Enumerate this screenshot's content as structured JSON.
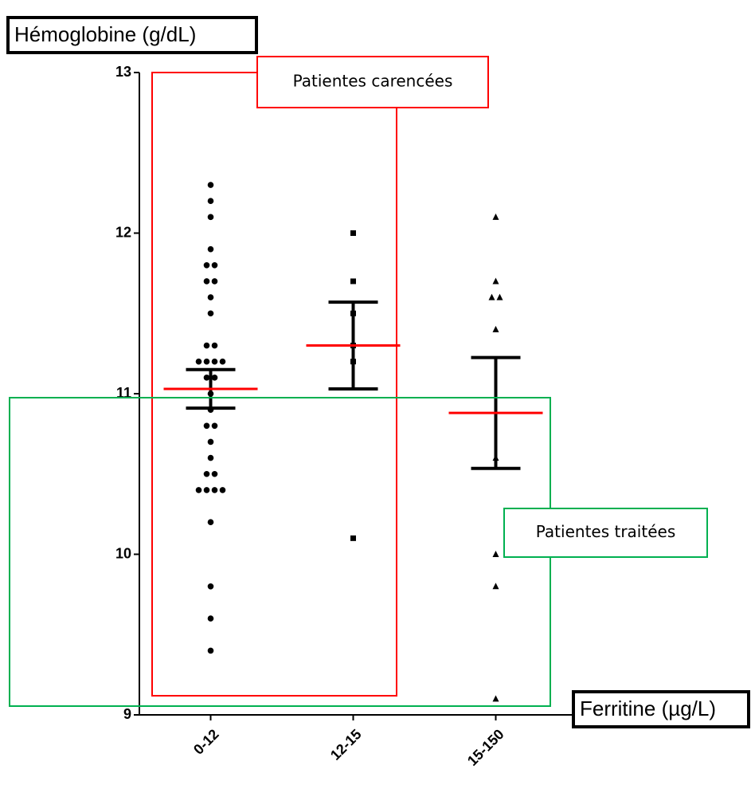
{
  "chart_data": {
    "type": "dot",
    "y_label": "Hémoglobine (g/dL)",
    "x_label": "Ferritine (µg/L)",
    "categories": [
      "0-12",
      "12-15",
      "15-150"
    ],
    "markers": [
      "circle",
      "square",
      "triangle"
    ],
    "color": "#000000",
    "mean_color": "#ff0000",
    "values": [
      [
        12.3,
        12.2,
        12.1,
        11.9,
        11.8,
        11.8,
        11.7,
        11.7,
        11.6,
        11.5,
        11.3,
        11.3,
        11.2,
        11.2,
        11.2,
        11.2,
        11.1,
        11.1,
        11.0,
        10.9,
        10.8,
        10.8,
        10.7,
        10.6,
        10.5,
        10.5,
        10.4,
        10.4,
        10.4,
        10.4,
        10.2,
        9.8,
        9.6,
        9.4
      ],
      [
        12.0,
        11.7,
        11.5,
        11.3,
        11.2,
        10.1
      ],
      [
        12.1,
        11.7,
        11.6,
        11.6,
        11.4,
        10.6,
        10.0,
        9.8,
        9.1
      ]
    ],
    "means": [
      11.03,
      11.3,
      10.88
    ],
    "errors": [
      0.12,
      0.27,
      0.345
    ],
    "ylim": [
      9,
      13
    ],
    "yticks": [
      9,
      10,
      11,
      12,
      13
    ],
    "annotations": [
      {
        "text": "Patientes carencées",
        "color": "#ff0000"
      },
      {
        "text": "Patientes traitées",
        "color": "#00b050"
      }
    ]
  }
}
